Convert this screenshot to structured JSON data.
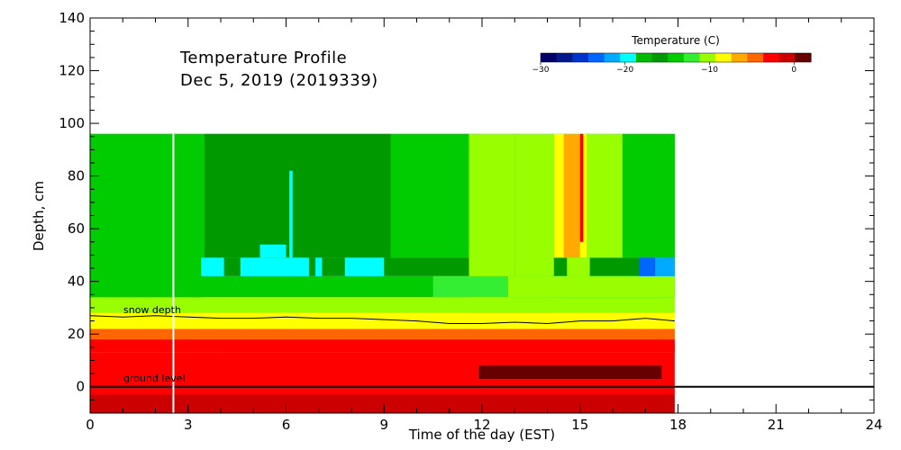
{
  "chart_data": {
    "type": "heatmap",
    "title_line1": "Temperature Profile",
    "title_line2": "Dec  5, 2019 (2019339)",
    "xlabel": "Time of the day (EST)",
    "ylabel": "Depth, cm",
    "xlim": [
      0,
      24
    ],
    "ylim": [
      -10,
      140
    ],
    "xticks": [
      0,
      3,
      6,
      9,
      12,
      15,
      18,
      21,
      24
    ],
    "yticks": [
      0,
      20,
      40,
      60,
      80,
      100,
      120,
      140
    ],
    "data_time_range": [
      0,
      17.9
    ],
    "data_depth_range": [
      -10,
      96
    ],
    "marker_time": 2.55,
    "colorbar": {
      "title": "Temperature (C)",
      "ticks": [
        -30,
        -20,
        -10,
        0
      ],
      "range": [
        -30,
        2
      ],
      "colors": [
        "#000066",
        "#001a8c",
        "#0033cc",
        "#0066ff",
        "#00aaff",
        "#00ffff",
        "#00bb00",
        "#009900",
        "#00cc00",
        "#33ee33",
        "#99ff00",
        "#ffff00",
        "#ffaa00",
        "#ff6600",
        "#ff0000",
        "#cc0000",
        "#660000"
      ]
    },
    "bands": [
      {
        "depth": [
          -10,
          -3
        ],
        "color": "#cc0000"
      },
      {
        "depth": [
          -3,
          13
        ],
        "color": "#ff0000"
      },
      {
        "depth": [
          13,
          18
        ],
        "color": "#ff0000"
      },
      {
        "depth": [
          18,
          22
        ],
        "color": "#ff6600"
      },
      {
        "depth": [
          22,
          28
        ],
        "color": "#ffff00"
      },
      {
        "depth": [
          28,
          34
        ],
        "color": "#99ff00"
      },
      {
        "depth": [
          34,
          42
        ],
        "color": "#00cc00"
      },
      {
        "depth": [
          42,
          49
        ],
        "color": "#009900"
      },
      {
        "depth": [
          49,
          96
        ],
        "color": "#00cc00"
      }
    ],
    "patches": [
      {
        "time": [
          0,
          3.5
        ],
        "depth": [
          34,
          96
        ],
        "color": "#00cc00"
      },
      {
        "time": [
          3.5,
          9.2
        ],
        "depth": [
          49,
          96
        ],
        "color": "#009900"
      },
      {
        "time": [
          9.2,
          11.6
        ],
        "depth": [
          49,
          96
        ],
        "color": "#00cc00"
      },
      {
        "time": [
          11.6,
          13.0
        ],
        "depth": [
          28,
          96
        ],
        "color": "#99ff00"
      },
      {
        "time": [
          13.0,
          14.2
        ],
        "depth": [
          28,
          96
        ],
        "color": "#99ff00"
      },
      {
        "time": [
          14.2,
          15.2
        ],
        "depth": [
          49,
          96
        ],
        "color": "#ffff00"
      },
      {
        "time": [
          15.2,
          16.3
        ],
        "depth": [
          49,
          96
        ],
        "color": "#99ff00"
      },
      {
        "time": [
          16.3,
          17.9
        ],
        "depth": [
          49,
          96
        ],
        "color": "#00cc00"
      },
      {
        "time": [
          10.5,
          17.9
        ],
        "depth": [
          34,
          42
        ],
        "color": "#33ee33"
      },
      {
        "time": [
          12.8,
          17.9
        ],
        "depth": [
          34,
          42
        ],
        "color": "#99ff00"
      },
      {
        "time": [
          3.4,
          4.1
        ],
        "depth": [
          42,
          49
        ],
        "color": "#00ffff"
      },
      {
        "time": [
          4.6,
          6.7
        ],
        "depth": [
          42,
          49
        ],
        "color": "#00ffff"
      },
      {
        "time": [
          6.9,
          7.1
        ],
        "depth": [
          42,
          49
        ],
        "color": "#00ffff"
      },
      {
        "time": [
          7.8,
          9.0
        ],
        "depth": [
          42,
          49
        ],
        "color": "#00ffff"
      },
      {
        "time": [
          5.2,
          6.0
        ],
        "depth": [
          49,
          54
        ],
        "color": "#00ffff"
      },
      {
        "time": [
          6.1,
          6.2
        ],
        "depth": [
          49,
          82
        ],
        "color": "#00ffff"
      },
      {
        "time": [
          16.8,
          17.3
        ],
        "depth": [
          42,
          49
        ],
        "color": "#0066ff"
      },
      {
        "time": [
          17.3,
          17.9
        ],
        "depth": [
          42,
          49
        ],
        "color": "#00aaff"
      },
      {
        "time": [
          14.5,
          15.0
        ],
        "depth": [
          49,
          96
        ],
        "color": "#ffaa00"
      },
      {
        "time": [
          15.0,
          15.1
        ],
        "depth": [
          55,
          96
        ],
        "color": "#ff0000"
      },
      {
        "time": [
          14.6,
          15.3
        ],
        "depth": [
          42,
          49
        ],
        "color": "#99ff00"
      },
      {
        "time": [
          11.9,
          17.5
        ],
        "depth": [
          3,
          8
        ],
        "color": "#660000"
      },
      {
        "time": [
          4.2,
          17.9
        ],
        "depth": [
          13,
          17
        ],
        "color": "#ff0000"
      }
    ],
    "snow_depth": [
      [
        0,
        27
      ],
      [
        1,
        26.5
      ],
      [
        2,
        27
      ],
      [
        3,
        26.5
      ],
      [
        4,
        26
      ],
      [
        5,
        26
      ],
      [
        6,
        26.5
      ],
      [
        7,
        26
      ],
      [
        8,
        26
      ],
      [
        9,
        25.5
      ],
      [
        10,
        25
      ],
      [
        11,
        24
      ],
      [
        12,
        24
      ],
      [
        13,
        24.5
      ],
      [
        14,
        24
      ],
      [
        15,
        25
      ],
      [
        16,
        25
      ],
      [
        17,
        26
      ],
      [
        17.9,
        25
      ]
    ],
    "annotations": {
      "snow_label": "snow depth",
      "ground_label": "ground level"
    }
  }
}
